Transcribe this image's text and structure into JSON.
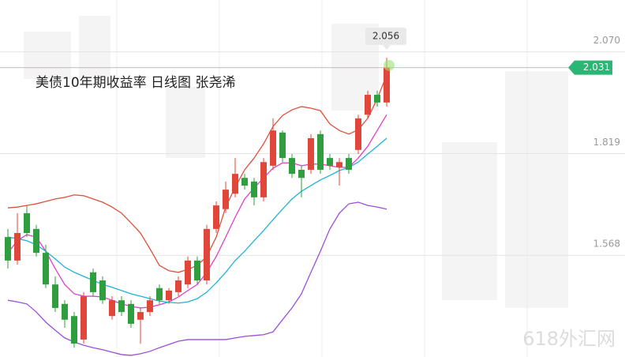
{
  "chart_data": {
    "type": "candlestick",
    "title": "美债10年期收益率  日线图 张尧浠",
    "watermark": "618外汇网",
    "ylim": [
      1.317,
      2.198
    ],
    "yticks": [
      1.568,
      1.819,
      {
        "value": 2.07,
        "label": "2.070"
      }
    ],
    "grid": true,
    "up_color": "#e0473a",
    "down_color": "#2e9e3e",
    "current_price": 2.031,
    "current_color": "#2bb673",
    "max_price": 2.056,
    "open": [
      1.613,
      1.555,
      1.672,
      1.633,
      1.574,
      1.496,
      1.448,
      1.418,
      1.36,
      1.526,
      1.506,
      1.418,
      1.457,
      1.448,
      1.409,
      1.428,
      1.487,
      1.457,
      1.477,
      1.496,
      1.555,
      1.506,
      1.633,
      1.682,
      1.72,
      1.759,
      1.75,
      1.711,
      1.789,
      1.871,
      1.808,
      1.779,
      1.779,
      1.867,
      1.808,
      1.785,
      1.808,
      1.828,
      1.915,
      1.964,
      1.945
    ],
    "high": [
      1.633,
      1.672,
      1.691,
      1.643,
      1.594,
      1.516,
      1.457,
      1.428,
      1.477,
      1.535,
      1.516,
      1.467,
      1.467,
      1.457,
      1.438,
      1.467,
      1.496,
      1.487,
      1.516,
      1.565,
      1.565,
      1.643,
      1.701,
      1.75,
      1.808,
      1.769,
      1.759,
      1.808,
      1.906,
      1.876,
      1.818,
      1.789,
      1.867,
      1.876,
      1.818,
      1.808,
      1.818,
      1.915,
      1.974,
      1.974,
      2.056
    ],
    "low": [
      1.535,
      1.545,
      1.613,
      1.565,
      1.487,
      1.428,
      1.389,
      1.34,
      1.35,
      1.467,
      1.448,
      1.409,
      1.418,
      1.389,
      1.35,
      1.418,
      1.448,
      1.448,
      1.467,
      1.487,
      1.496,
      1.496,
      1.623,
      1.672,
      1.711,
      1.73,
      1.691,
      1.701,
      1.779,
      1.798,
      1.759,
      1.711,
      1.769,
      1.769,
      1.779,
      1.74,
      1.769,
      1.818,
      1.906,
      1.935,
      1.935
    ],
    "close": [
      1.555,
      1.623,
      1.623,
      1.574,
      1.496,
      1.438,
      1.409,
      1.35,
      1.467,
      1.477,
      1.457,
      1.457,
      1.428,
      1.399,
      1.428,
      1.457,
      1.457,
      1.481,
      1.506,
      1.555,
      1.506,
      1.633,
      1.691,
      1.73,
      1.769,
      1.74,
      1.711,
      1.798,
      1.876,
      1.808,
      1.769,
      1.759,
      1.857,
      1.779,
      1.789,
      1.798,
      1.779,
      1.906,
      1.964,
      1.945,
      2.031
    ],
    "lines": [
      {
        "color": "#e0503c",
        "values": [
          1.685,
          1.687,
          1.691,
          1.695,
          1.701,
          1.707,
          1.711,
          1.717,
          1.715,
          1.707,
          1.699,
          1.687,
          1.672,
          1.648,
          1.623,
          1.584,
          1.543,
          1.53,
          1.526,
          1.533,
          1.543,
          1.565,
          1.613,
          1.687,
          1.736,
          1.779,
          1.808,
          1.843,
          1.886,
          1.913,
          1.927,
          1.935,
          1.931,
          1.925,
          1.892,
          1.876,
          1.867,
          1.878,
          1.906,
          1.954,
          2.013
        ]
      },
      {
        "color": "#9b4fd9",
        "values": [
          1.457,
          1.453,
          1.448,
          1.428,
          1.403,
          1.383,
          1.364,
          1.354,
          1.346,
          1.34,
          1.335,
          1.329,
          1.323,
          1.321,
          1.325,
          1.331,
          1.34,
          1.348,
          1.356,
          1.36,
          1.36,
          1.36,
          1.36,
          1.36,
          1.364,
          1.368,
          1.37,
          1.372,
          1.379,
          1.409,
          1.438,
          1.473,
          1.526,
          1.578,
          1.633,
          1.672,
          1.695,
          1.699,
          1.691,
          1.687,
          1.682
        ]
      },
      {
        "color": "#e040c8",
        "values": [
          1.574,
          1.604,
          1.619,
          1.613,
          1.578,
          1.535,
          1.496,
          1.473,
          1.467,
          1.467,
          1.465,
          1.457,
          1.448,
          1.442,
          1.438,
          1.44,
          1.446,
          1.453,
          1.465,
          1.481,
          1.496,
          1.526,
          1.565,
          1.613,
          1.662,
          1.707,
          1.734,
          1.759,
          1.783,
          1.796,
          1.796,
          1.789,
          1.793,
          1.793,
          1.789,
          1.785,
          1.785,
          1.808,
          1.837,
          1.876,
          1.915
        ]
      },
      {
        "color": "#1fb3d8",
        "values": [
          1.613,
          1.609,
          1.604,
          1.594,
          1.578,
          1.559,
          1.539,
          1.526,
          1.516,
          1.506,
          1.496,
          1.489,
          1.481,
          1.473,
          1.467,
          1.461,
          1.455,
          1.452,
          1.45,
          1.453,
          1.461,
          1.477,
          1.5,
          1.526,
          1.555,
          1.578,
          1.604,
          1.629,
          1.656,
          1.682,
          1.707,
          1.726,
          1.74,
          1.754,
          1.765,
          1.777,
          1.785,
          1.798,
          1.818,
          1.837,
          1.857
        ]
      }
    ]
  }
}
